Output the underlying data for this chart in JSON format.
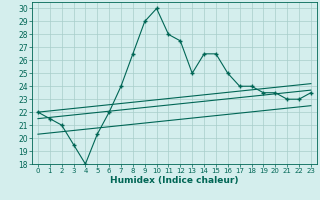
{
  "title": "",
  "xlabel": "Humidex (Indice chaleur)",
  "bg_color": "#d4eeed",
  "grid_color": "#a8ceca",
  "line_color": "#006655",
  "xlim": [
    -0.5,
    23.5
  ],
  "ylim": [
    18,
    30.5
  ],
  "xticks": [
    0,
    1,
    2,
    3,
    4,
    5,
    6,
    7,
    8,
    9,
    10,
    11,
    12,
    13,
    14,
    15,
    16,
    17,
    18,
    19,
    20,
    21,
    22,
    23
  ],
  "yticks": [
    18,
    19,
    20,
    21,
    22,
    23,
    24,
    25,
    26,
    27,
    28,
    29,
    30
  ],
  "main_x": [
    0,
    1,
    2,
    3,
    4,
    5,
    6,
    7,
    8,
    9,
    10,
    11,
    12,
    13,
    14,
    15,
    16,
    17,
    18,
    19,
    20,
    21,
    22,
    23
  ],
  "main_y": [
    22.0,
    21.5,
    21.0,
    19.5,
    18.0,
    20.3,
    22.0,
    24.0,
    26.5,
    29.0,
    30.0,
    28.0,
    27.5,
    25.0,
    26.5,
    26.5,
    25.0,
    24.0,
    24.0,
    23.5,
    23.5,
    23.0,
    23.0,
    23.5
  ],
  "line1_x": [
    0,
    23
  ],
  "line1_y": [
    22.0,
    24.2
  ],
  "line2_x": [
    0,
    23
  ],
  "line2_y": [
    21.5,
    23.7
  ],
  "line3_x": [
    0,
    23
  ],
  "line3_y": [
    20.3,
    22.5
  ]
}
